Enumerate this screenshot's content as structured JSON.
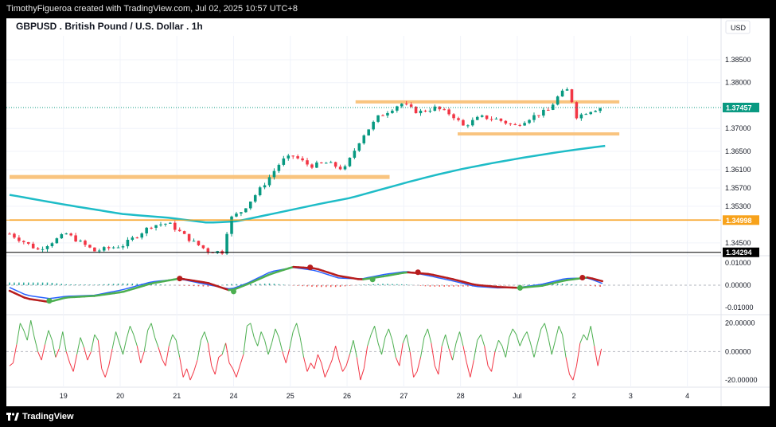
{
  "header": {
    "creator_line": "TimothyFigueroa created with TradingView.com, Jul 02, 2025 10:57 UTC+8"
  },
  "footer": {
    "brand": "TradingView",
    "logo_icon": "tradingview-logo-icon"
  },
  "chart_data": {
    "type": "candlestick",
    "title": "GBPUSD . British Pound / U.S. Dollar . 1h",
    "currency": "USD",
    "grid": true,
    "x_tick_labels": [
      {
        "label": "19",
        "pos": 0.95
      },
      {
        "label": "20",
        "pos": 1.95
      },
      {
        "label": "21",
        "pos": 2.95
      },
      {
        "label": "24",
        "pos": 3.95
      },
      {
        "label": "25",
        "pos": 4.95
      },
      {
        "label": "26",
        "pos": 5.95
      },
      {
        "label": "27",
        "pos": 6.95
      },
      {
        "label": "28",
        "pos": 7.95
      },
      {
        "label": "Jul",
        "pos": 8.95
      },
      {
        "label": "2",
        "pos": 9.95
      },
      {
        "label": "3",
        "pos": 10.95
      },
      {
        "label": "4",
        "pos": 11.95
      }
    ],
    "price_panel": {
      "ylim": [
        1.3422,
        1.3897
      ],
      "y_ticks": [
        {
          "value": 1.385,
          "label": "1.38500"
        },
        {
          "value": 1.38,
          "label": "1.38000"
        },
        {
          "value": 1.37,
          "label": "1.37000"
        },
        {
          "value": 1.365,
          "label": "1.36500"
        },
        {
          "value": 1.361,
          "label": "1.36100"
        },
        {
          "value": 1.357,
          "label": "1.35700"
        },
        {
          "value": 1.353,
          "label": "1.35300"
        },
        {
          "value": 1.345,
          "label": "1.34500"
        }
      ],
      "price_markers": [
        {
          "value": 1.37457,
          "label": "1.37457",
          "color": "#089981",
          "line_style": "dotted"
        },
        {
          "value": 1.34998,
          "label": "1.34998",
          "color": "#f7a21b",
          "line_style": "solid"
        },
        {
          "value": 1.34294,
          "label": "1.34294",
          "color": "#000000",
          "line_style": "solid"
        }
      ],
      "zones": [
        {
          "x_start": 0.0,
          "x_end": 6.7,
          "value": 1.3594,
          "color": "#f9c47f"
        },
        {
          "x_start": 6.1,
          "x_end": 10.75,
          "value": 1.3758,
          "color": "#f9c47f"
        },
        {
          "x_start": 7.9,
          "x_end": 10.75,
          "value": 1.3688,
          "color": "#f9c47f"
        },
        {
          "x_start": 0.0,
          "x_end": 12.5,
          "value": 1.35,
          "color": "#f9c47f"
        }
      ],
      "moving_average": {
        "color": "#1ebcc7",
        "x": [
          0.0,
          1.0,
          2.0,
          2.8,
          3.5,
          4.0,
          4.5,
          5.0,
          5.5,
          6.0,
          6.5,
          7.0,
          7.5,
          8.0,
          8.5,
          9.0,
          9.5,
          10.0,
          10.5
        ],
        "values": [
          1.3555,
          1.3533,
          1.3513,
          1.3505,
          1.3494,
          1.3497,
          1.351,
          1.3523,
          1.3536,
          1.3548,
          1.3565,
          1.3582,
          1.3598,
          1.3612,
          1.3624,
          1.3635,
          1.3645,
          1.3654,
          1.3662
        ]
      },
      "candles": {
        "x_start": 0.0,
        "x_step": 0.0833,
        "up_color": "#089981",
        "down_color": "#f23645",
        "close_path": [
          [
            0.0,
            1.347
          ],
          [
            0.5,
            1.3435
          ],
          [
            1.0,
            1.347
          ],
          [
            1.5,
            1.3432
          ],
          [
            2.0,
            1.3445
          ],
          [
            2.5,
            1.3488
          ],
          [
            2.8,
            1.3493
          ],
          [
            3.2,
            1.3455
          ],
          [
            3.5,
            1.3432
          ],
          [
            3.8,
            1.343
          ],
          [
            3.85,
            1.35
          ],
          [
            4.1,
            1.352
          ],
          [
            4.5,
            1.358
          ],
          [
            4.8,
            1.363
          ],
          [
            5.0,
            1.364
          ],
          [
            5.3,
            1.3618
          ],
          [
            5.6,
            1.3625
          ],
          [
            5.9,
            1.361
          ],
          [
            6.2,
            1.368
          ],
          [
            6.5,
            1.3725
          ],
          [
            6.7,
            1.374
          ],
          [
            6.9,
            1.3755
          ],
          [
            7.2,
            1.3735
          ],
          [
            7.5,
            1.3745
          ],
          [
            7.8,
            1.373
          ],
          [
            8.0,
            1.3705
          ],
          [
            8.3,
            1.3725
          ],
          [
            8.6,
            1.372
          ],
          [
            8.9,
            1.3705
          ],
          [
            9.2,
            1.3725
          ],
          [
            9.5,
            1.374
          ],
          [
            9.7,
            1.3775
          ],
          [
            9.85,
            1.3785
          ],
          [
            10.0,
            1.3725
          ],
          [
            10.2,
            1.3738
          ],
          [
            10.45,
            1.3746
          ]
        ]
      }
    },
    "macd_panel": {
      "ylim": [
        -0.0125,
        0.0125
      ],
      "y_ticks": [
        {
          "value": 0.01,
          "label": "0.01000"
        },
        {
          "value": 0.0,
          "label": "0.00000"
        },
        {
          "value": -0.01,
          "label": "-0.01000"
        }
      ],
      "zero_line": 0.0,
      "macd_line": {
        "color": "#2962ff",
        "x": [
          0.0,
          0.3,
          0.7,
          1.0,
          1.5,
          2.0,
          2.5,
          3.0,
          3.5,
          3.9,
          4.2,
          4.6,
          5.0,
          5.4,
          5.8,
          6.2,
          6.6,
          7.0,
          7.4,
          7.8,
          8.2,
          8.6,
          9.0,
          9.4,
          9.8,
          10.2,
          10.45
        ],
        "values": [
          -0.001,
          -0.0045,
          -0.006,
          -0.005,
          -0.0045,
          -0.002,
          0.0015,
          0.0028,
          0.0002,
          -0.0018,
          0.001,
          0.006,
          0.008,
          0.0065,
          0.0032,
          0.0028,
          0.0048,
          0.0062,
          0.0042,
          0.002,
          -0.0005,
          -0.0012,
          -0.001,
          0.0005,
          0.003,
          0.0032,
          0.0008
        ]
      },
      "signal_line_up": {
        "color": "#4caf50",
        "x": [
          0.0,
          0.3,
          0.7,
          1.0,
          1.5,
          2.0,
          2.5,
          3.0,
          3.5,
          3.9,
          4.2,
          4.6,
          5.0,
          5.4,
          5.8,
          6.2,
          6.6,
          7.0,
          7.4,
          7.8,
          8.2,
          8.6,
          9.0,
          9.4,
          9.8,
          10.2,
          10.45
        ],
        "values": [
          -0.0025,
          -0.006,
          -0.0075,
          -0.0055,
          -0.0048,
          -0.003,
          0.0008,
          0.003,
          0.001,
          -0.0025,
          0.0005,
          0.005,
          0.0082,
          0.0075,
          0.0042,
          0.0025,
          0.004,
          0.0058,
          0.005,
          0.0028,
          0.0002,
          -0.0008,
          -0.0012,
          -0.0002,
          0.0022,
          0.0035,
          0.0018
        ]
      },
      "signal_line_down_color": "#b71c1c",
      "crossovers": [
        {
          "x": 0.7,
          "value": -0.007,
          "color": "#4caf50"
        },
        {
          "x": 3.0,
          "value": 0.003,
          "color": "#b71c1c"
        },
        {
          "x": 3.95,
          "value": -0.0028,
          "color": "#4caf50"
        },
        {
          "x": 5.3,
          "value": 0.008,
          "color": "#b71c1c"
        },
        {
          "x": 6.4,
          "value": 0.0026,
          "color": "#4caf50"
        },
        {
          "x": 7.2,
          "value": 0.0058,
          "color": "#b71c1c"
        },
        {
          "x": 9.0,
          "value": -0.0012,
          "color": "#4caf50"
        },
        {
          "x": 10.1,
          "value": 0.0034,
          "color": "#b71c1c"
        }
      ],
      "histogram": {
        "up_color": "#26a69a",
        "down_color": "#ef5350"
      }
    },
    "rsi_panel": {
      "ylim": [
        -25,
        26
      ],
      "y_ticks": [
        {
          "value": 20,
          "label": "20.00000"
        },
        {
          "value": 0,
          "label": "0.00000"
        },
        {
          "value": -20,
          "label": "-20.00000"
        }
      ],
      "zero_line": 0,
      "positive_color": "#4caf50",
      "negative_color": "#f23645",
      "x_start": 0.0,
      "x_step": 0.0833,
      "values": [
        -10,
        -8,
        5,
        20,
        15,
        8,
        22,
        10,
        0,
        -6,
        5,
        15,
        8,
        -4,
        2,
        14,
        0,
        -8,
        -14,
        -2,
        10,
        3,
        -6,
        0,
        12,
        8,
        -12,
        -18,
        -10,
        2,
        14,
        6,
        -2,
        9,
        18,
        12,
        4,
        -8,
        0,
        15,
        20,
        10,
        3,
        -5,
        -10,
        4,
        12,
        8,
        -4,
        -18,
        -12,
        -20,
        -14,
        -6,
        8,
        14,
        6,
        -10,
        -16,
        -4,
        -2,
        6,
        -8,
        -12,
        -18,
        -10,
        -2,
        18,
        20,
        10,
        4,
        14,
        8,
        -2,
        6,
        16,
        10,
        0,
        -8,
        2,
        14,
        20,
        10,
        -4,
        -14,
        -8,
        -12,
        -2,
        -8,
        -18,
        -12,
        -6,
        4,
        -6,
        -14,
        -10,
        -2,
        8,
        -4,
        -20,
        -12,
        4,
        12,
        18,
        6,
        -2,
        10,
        16,
        8,
        -4,
        -10,
        6,
        12,
        0,
        -18,
        -14,
        -4,
        10,
        16,
        6,
        -10,
        -16,
        4,
        12,
        2,
        -6,
        6,
        14,
        4,
        -8,
        -18,
        -6,
        8,
        12,
        4,
        -10,
        -14,
        0,
        8,
        4,
        -4,
        10,
        16,
        12,
        4,
        10,
        14,
        6,
        -4,
        6,
        16,
        20,
        10,
        -2,
        8,
        18,
        12,
        -4,
        -16,
        -20,
        -10,
        6,
        12,
        8,
        18,
        4,
        -10,
        2
      ]
    }
  }
}
